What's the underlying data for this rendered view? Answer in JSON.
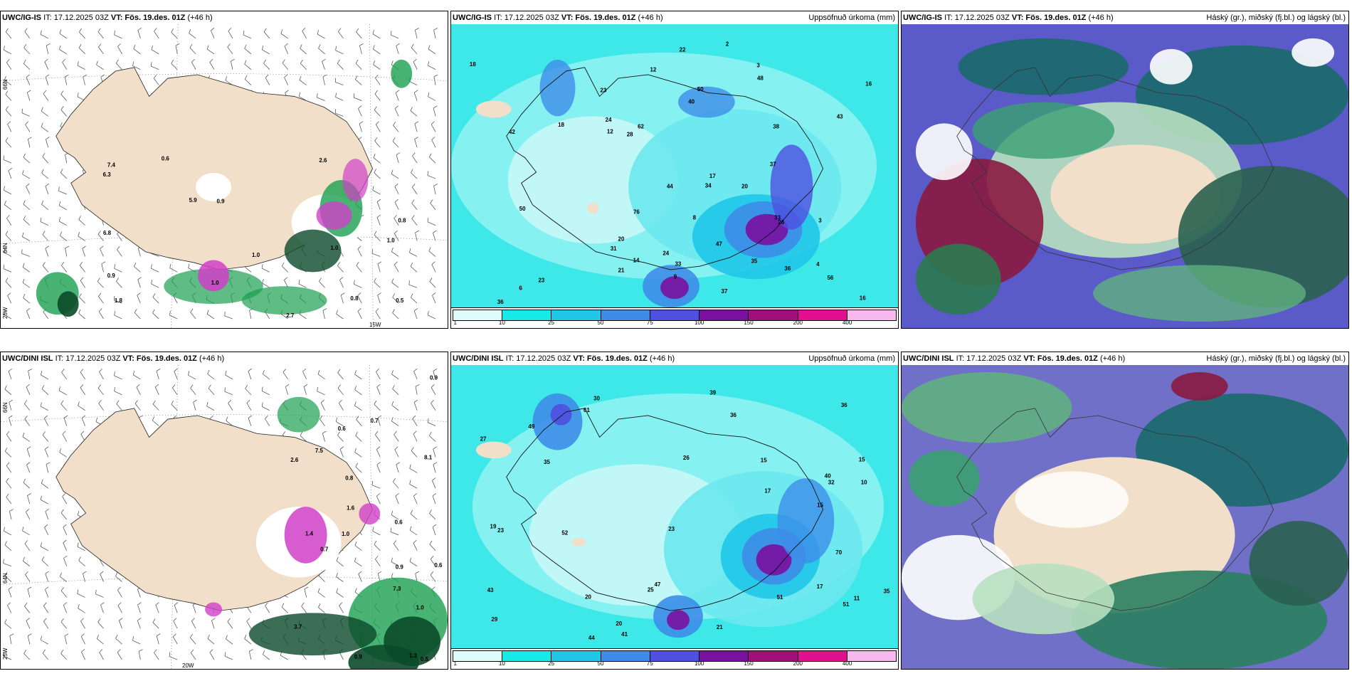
{
  "panels": [
    {
      "header_model": "UWC/IG-IS",
      "header_it": "IT: 17.12.2025 03Z",
      "header_vt_label": "VT:",
      "header_vt": "Fös. 19.des. 01Z",
      "header_lead": "(+46 h)",
      "header_right": "",
      "lat_labels": [
        "66N",
        "64N"
      ],
      "lon_labels": [
        "25W",
        "15W"
      ],
      "values": [
        "1.0",
        "1.0",
        "1.8",
        "0.6",
        "0.9",
        "0.8",
        "0.9",
        "2.6",
        "5.9",
        "2.7",
        "6.3",
        "6.8",
        "7.4",
        "0.5",
        "1.0",
        "0.8",
        "1.0"
      ]
    },
    {
      "header_model": "UWC/IG-IS",
      "header_it": "IT: 17.12.2025 03Z",
      "header_vt_label": "VT:",
      "header_vt": "Fös. 19.des. 01Z",
      "header_lead": "(+46 h)",
      "header_right": "Uppsöfnuð úrkoma (mm)",
      "values": [
        "6",
        "3",
        "17",
        "8",
        "12",
        "2",
        "4",
        "3",
        "36",
        "31",
        "16",
        "12",
        "14",
        "22",
        "35",
        "24",
        "33",
        "50",
        "44",
        "16",
        "18",
        "23",
        "9",
        "20",
        "26",
        "48",
        "62",
        "40",
        "43",
        "47",
        "56",
        "76",
        "50",
        "36",
        "34",
        "37",
        "33",
        "38",
        "42",
        "24",
        "18",
        "20",
        "23",
        "21",
        "37",
        "28"
      ]
    },
    {
      "header_model": "UWC/IG-IS",
      "header_it": "IT: 17.12.2025 03Z",
      "header_vt_label": "VT:",
      "header_vt": "Fös. 19.des. 01Z",
      "header_lead": "(+46 h)",
      "header_right": "Háský (gr.), miðský (fj.bl.) og lágský (bl.)"
    },
    {
      "header_model": "UWC/DINI ISL",
      "header_it": "IT: 17.12.2025 03Z",
      "header_vt_label": "VT:",
      "header_vt": "Fös. 19.des. 01Z",
      "header_lead": "(+46 h)",
      "header_right": "",
      "lat_labels": [
        "66N",
        "64N"
      ],
      "lon_labels": [
        "25W",
        "20W"
      ],
      "values": [
        "0.8",
        "0.5",
        "0.9",
        "0.9",
        "0.6",
        "1.0",
        "0.7",
        "1.6",
        "1.3",
        "1.4",
        "0.6",
        "2.6",
        "0.7",
        "0.9",
        "1.0",
        "7.3",
        "7.5",
        "3.7",
        "0.6",
        "8.1"
      ]
    },
    {
      "header_model": "UWC/DINI ISL",
      "header_it": "IT: 17.12.2025 03Z",
      "header_vt_label": "VT:",
      "header_vt": "Fös. 19.des. 01Z",
      "header_lead": "(+46 h)",
      "header_right": "Uppsöfnuð úrkoma (mm)",
      "values": [
        "17",
        "15",
        "11",
        "26",
        "29",
        "30",
        "40",
        "20",
        "36",
        "35",
        "10",
        "27",
        "15",
        "41",
        "43",
        "49",
        "51",
        "61",
        "47",
        "32",
        "19",
        "23",
        "21",
        "17",
        "20",
        "25",
        "39",
        "36",
        "15",
        "35",
        "52",
        "51",
        "44",
        "23",
        "70"
      ]
    },
    {
      "header_model": "UWC/DINI ISL",
      "header_it": "IT: 17.12.2025 03Z",
      "header_vt_label": "VT:",
      "header_vt": "Fös. 19.des. 01Z",
      "header_lead": "(+46 h)",
      "header_right": "Háský (gr.), miðský (fj.bl.) og lágský (bl.)"
    }
  ],
  "colorbar": {
    "labels": [
      "1",
      "10",
      "25",
      "50",
      "75",
      "100",
      "150",
      "200",
      "400"
    ],
    "colors": [
      "#dffcfc",
      "#19e8e8",
      "#20c7e8",
      "#3d8de8",
      "#4f4fe0",
      "#7a10a0",
      "#a0107a",
      "#e01090",
      "#f8b8f0"
    ]
  },
  "colors": {
    "land": "#f2dfc9",
    "sea_light": "#7ff0f0",
    "sea": "#3ee8e8",
    "green": "#1aa050",
    "dark_green": "#0b4a2a",
    "magenta": "#d040c8",
    "purple": "#5a5ac8",
    "maroon": "#8a1a40",
    "teal": "#1a6a6a"
  }
}
